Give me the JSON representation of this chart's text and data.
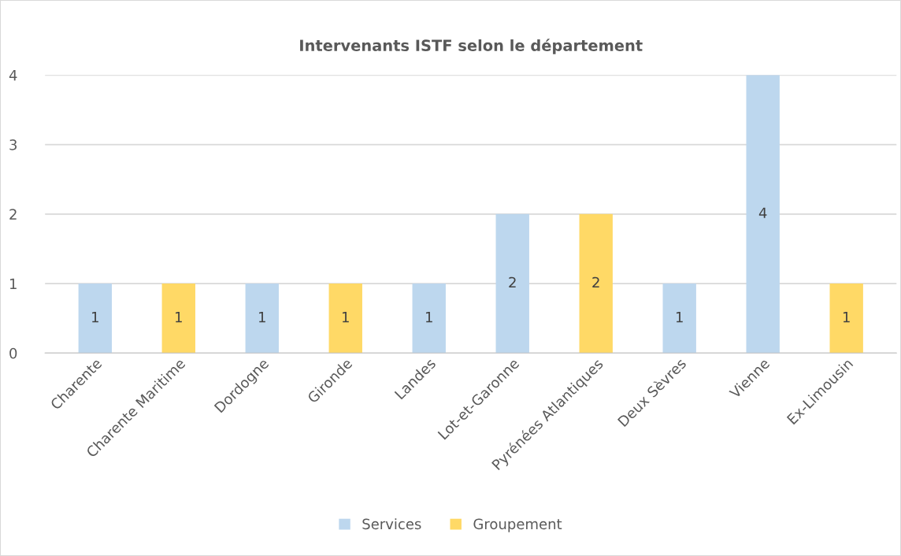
{
  "chart_data": {
    "type": "bar",
    "title": "Intervenants ISTF selon le département",
    "categories": [
      "Charente",
      "Charente Maritime",
      "Dordogne",
      "Gironde",
      "Landes",
      "Lot-et-Garonne",
      "Pyrénées Atlantiques",
      "Deux Sèvres",
      "Vienne",
      "Ex-Limousin"
    ],
    "series": [
      {
        "name": "Services",
        "color": "#bdd7ee",
        "values": [
          1,
          null,
          1,
          null,
          1,
          2,
          null,
          1,
          4,
          null
        ]
      },
      {
        "name": "Groupement",
        "color": "#ffd966",
        "values": [
          null,
          1,
          null,
          1,
          null,
          null,
          2,
          null,
          null,
          1
        ]
      }
    ],
    "ylim": [
      0,
      4
    ],
    "yticks": [
      0,
      1,
      2,
      3,
      4
    ],
    "grid": "y",
    "legend": "bottom",
    "data_labels": true
  }
}
